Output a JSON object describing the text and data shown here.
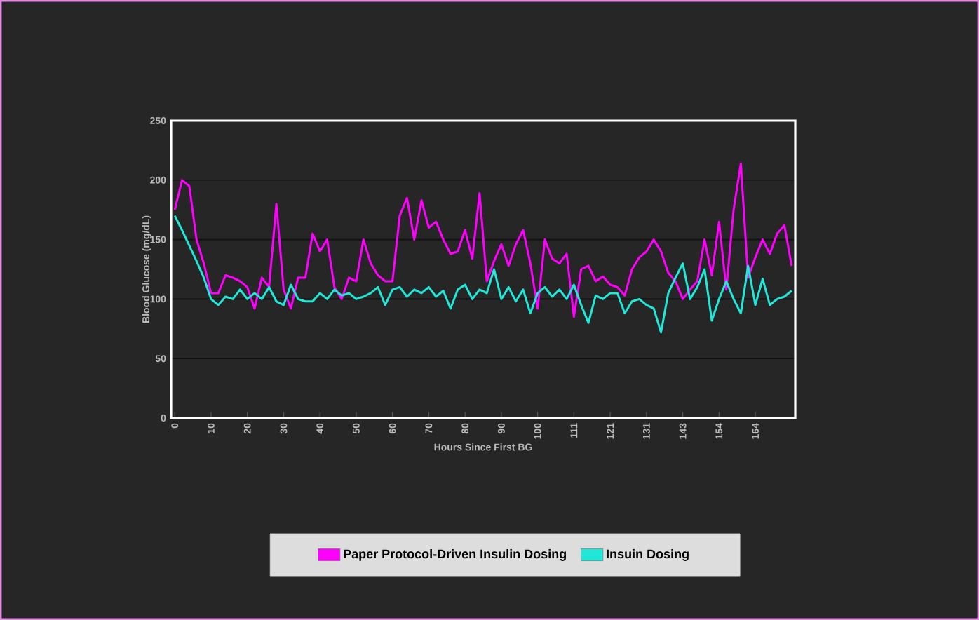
{
  "chart_data": {
    "type": "line",
    "xlabel": "Hours Since First BG",
    "ylabel": "Blood Glucose (mg/dL)",
    "categories": [
      "0",
      null,
      null,
      null,
      null,
      "10",
      null,
      null,
      null,
      null,
      "20",
      null,
      null,
      null,
      null,
      "30",
      null,
      null,
      null,
      null,
      "40",
      null,
      null,
      null,
      null,
      "50",
      null,
      null,
      null,
      null,
      "60",
      null,
      null,
      null,
      null,
      "70",
      null,
      null,
      null,
      null,
      "80",
      null,
      null,
      null,
      null,
      "90",
      null,
      null,
      null,
      null,
      "100",
      null,
      null,
      null,
      null,
      "111",
      null,
      null,
      null,
      null,
      "121",
      null,
      null,
      null,
      null,
      "131",
      null,
      null,
      null,
      null,
      "143",
      null,
      null,
      null,
      null,
      "154",
      null,
      null,
      null,
      null,
      "164",
      null,
      null,
      null,
      null,
      null
    ],
    "series": [
      {
        "name": "Paper Protocol-Driven Insulin Dosing",
        "color": "#ff00ff",
        "values": [
          175,
          200,
          195,
          150,
          130,
          105,
          105,
          120,
          118,
          115,
          110,
          92,
          118,
          110,
          180,
          108,
          92,
          118,
          118,
          155,
          140,
          150,
          110,
          100,
          118,
          115,
          150,
          130,
          120,
          115,
          115,
          170,
          185,
          150,
          183,
          160,
          165,
          150,
          138,
          140,
          158,
          134,
          189,
          115,
          132,
          146,
          128,
          146,
          158,
          130,
          92,
          150,
          134,
          130,
          138,
          85,
          125,
          128,
          115,
          119,
          112,
          110,
          103,
          125,
          135,
          140,
          150,
          140,
          122,
          115,
          100,
          108,
          115,
          150,
          120,
          165,
          108,
          175,
          214,
          118,
          135,
          150,
          138,
          155,
          162,
          128
        ]
      },
      {
        "name": "Insuin Dosing",
        "color": "#20e8d8",
        "values": [
          170,
          158,
          145,
          132,
          118,
          100,
          95,
          102,
          100,
          108,
          100,
          105,
          100,
          110,
          98,
          95,
          112,
          100,
          98,
          98,
          105,
          100,
          108,
          103,
          105,
          100,
          102,
          105,
          110,
          95,
          108,
          110,
          102,
          108,
          105,
          110,
          102,
          107,
          92,
          108,
          112,
          100,
          108,
          105,
          125,
          100,
          110,
          98,
          108,
          88,
          105,
          110,
          102,
          108,
          100,
          112,
          95,
          80,
          103,
          100,
          105,
          105,
          88,
          98,
          100,
          95,
          92,
          72,
          105,
          118,
          130,
          100,
          110,
          125,
          82,
          100,
          115,
          100,
          88,
          128,
          95,
          117,
          95,
          100,
          102,
          107
        ]
      }
    ],
    "ylim": [
      0,
      250
    ],
    "yticks": [
      0,
      50,
      100,
      150,
      200,
      250
    ],
    "grid": "y",
    "legend": "bottom",
    "marker": "none",
    "line_style": "solid"
  }
}
